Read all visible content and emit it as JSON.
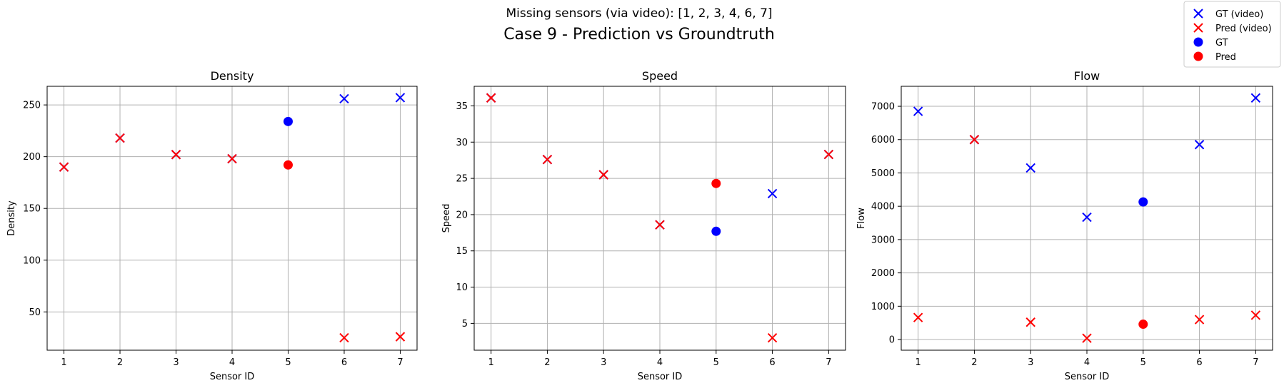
{
  "figure": {
    "suptitle": "Missing sensors (via video): [1, 2, 3, 4, 6, 7]",
    "title": "Case 9 - Prediction vs Groundtruth"
  },
  "legend": {
    "placement": "top-right",
    "entries": [
      {
        "label": "GT (video)",
        "marker": "x",
        "color": "#0000ff"
      },
      {
        "label": "Pred (video)",
        "marker": "x",
        "color": "#ff0000"
      },
      {
        "label": "GT",
        "marker": "o",
        "color": "#0000ff"
      },
      {
        "label": "Pred",
        "marker": "o",
        "color": "#ff0000"
      }
    ]
  },
  "chart_data": [
    {
      "type": "scatter",
      "title": "Density",
      "xlabel": "Sensor ID",
      "ylabel": "Density",
      "xlim": [
        0.7,
        7.3
      ],
      "ylim": [
        13,
        268
      ],
      "xticks": [
        1,
        2,
        3,
        4,
        5,
        6,
        7
      ],
      "yticks": [
        50,
        100,
        150,
        200,
        250
      ],
      "grid": true,
      "series": [
        {
          "name": "GT (video)",
          "marker": "x",
          "color": "#0000ff",
          "x": [
            1,
            2,
            3,
            4,
            6,
            7
          ],
          "y": [
            190,
            218,
            202,
            198,
            256,
            257
          ]
        },
        {
          "name": "Pred (video)",
          "marker": "x",
          "color": "#ff0000",
          "x": [
            1,
            2,
            3,
            4,
            6,
            7
          ],
          "y": [
            190,
            218,
            202,
            198,
            25,
            26
          ]
        },
        {
          "name": "GT",
          "marker": "o",
          "color": "#0000ff",
          "x": [
            5
          ],
          "y": [
            234
          ]
        },
        {
          "name": "Pred",
          "marker": "o",
          "color": "#ff0000",
          "x": [
            5
          ],
          "y": [
            192
          ]
        }
      ]
    },
    {
      "type": "scatter",
      "title": "Speed",
      "xlabel": "Sensor ID",
      "ylabel": "Speed",
      "xlim": [
        0.7,
        7.3
      ],
      "ylim": [
        1.3,
        37.7
      ],
      "xticks": [
        1,
        2,
        3,
        4,
        5,
        6,
        7
      ],
      "yticks": [
        5,
        10,
        15,
        20,
        25,
        30,
        35
      ],
      "grid": true,
      "series": [
        {
          "name": "GT (video)",
          "marker": "x",
          "color": "#0000ff",
          "x": [
            1,
            2,
            3,
            4,
            6,
            7
          ],
          "y": [
            36.1,
            27.6,
            25.5,
            18.6,
            22.9,
            28.3
          ]
        },
        {
          "name": "Pred (video)",
          "marker": "x",
          "color": "#ff0000",
          "x": [
            1,
            2,
            3,
            4,
            6,
            7
          ],
          "y": [
            36.1,
            27.6,
            25.5,
            18.6,
            3.0,
            28.3
          ]
        },
        {
          "name": "GT",
          "marker": "o",
          "color": "#0000ff",
          "x": [
            5
          ],
          "y": [
            17.7
          ]
        },
        {
          "name": "Pred",
          "marker": "o",
          "color": "#ff0000",
          "x": [
            5
          ],
          "y": [
            24.3
          ]
        }
      ]
    },
    {
      "type": "scatter",
      "title": "Flow",
      "xlabel": "Sensor ID",
      "ylabel": "Flow",
      "xlim": [
        0.7,
        7.3
      ],
      "ylim": [
        -320,
        7600
      ],
      "xticks": [
        1,
        2,
        3,
        4,
        5,
        6,
        7
      ],
      "yticks": [
        0,
        1000,
        2000,
        3000,
        4000,
        5000,
        6000,
        7000
      ],
      "grid": true,
      "series": [
        {
          "name": "GT (video)",
          "marker": "x",
          "color": "#0000ff",
          "x": [
            1,
            2,
            3,
            4,
            6,
            7
          ],
          "y": [
            6850,
            6000,
            5150,
            3670,
            5850,
            7250
          ]
        },
        {
          "name": "Pred (video)",
          "marker": "x",
          "color": "#ff0000",
          "x": [
            1,
            2,
            3,
            4,
            6,
            7
          ],
          "y": [
            660,
            6000,
            520,
            40,
            600,
            730
          ]
        },
        {
          "name": "GT",
          "marker": "o",
          "color": "#0000ff",
          "x": [
            5
          ],
          "y": [
            4130
          ]
        },
        {
          "name": "Pred",
          "marker": "o",
          "color": "#ff0000",
          "x": [
            5
          ],
          "y": [
            460
          ]
        }
      ]
    }
  ]
}
